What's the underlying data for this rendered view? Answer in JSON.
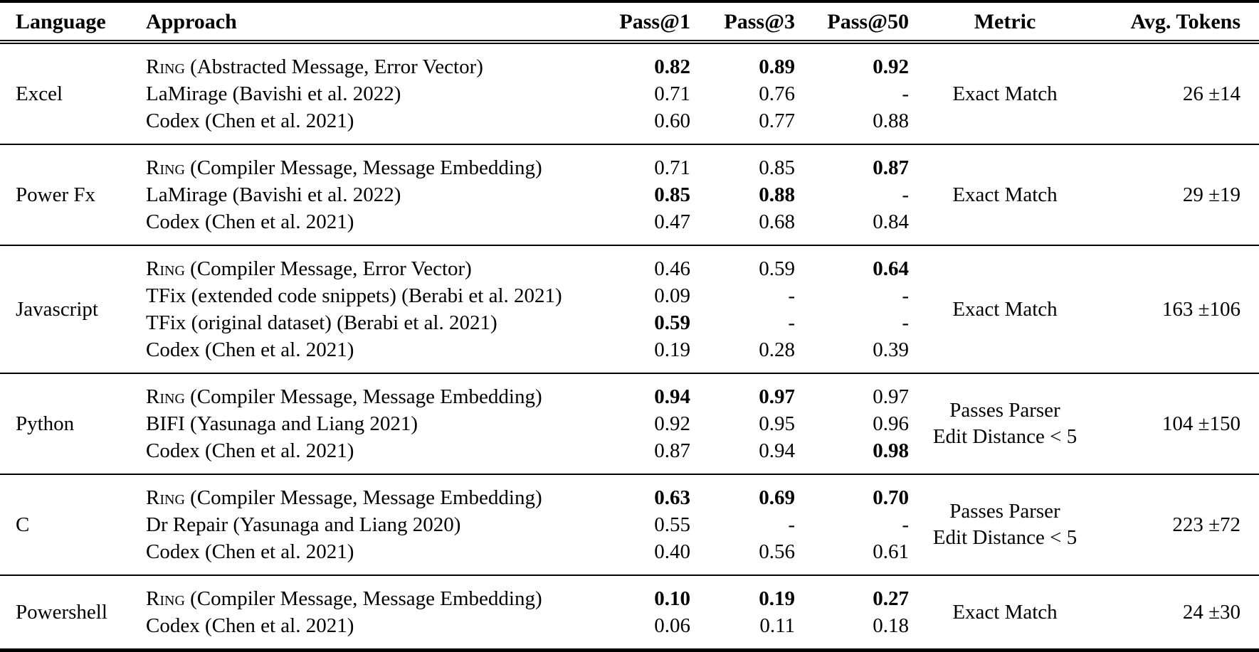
{
  "table": {
    "columns": [
      "Language",
      "Approach",
      "Pass@1",
      "Pass@3",
      "Pass@50",
      "Metric",
      "Avg. Tokens"
    ],
    "groups": [
      {
        "language": "Excel",
        "metric": "Exact Match",
        "avg_tokens": "26 ±14",
        "rows": [
          {
            "approach_sc": "Ring",
            "approach": " (Abstracted Message, Error Vector)",
            "pass1": {
              "v": "0.82",
              "b": true
            },
            "pass3": {
              "v": "0.89",
              "b": true
            },
            "pass50": {
              "v": "0.92",
              "b": true
            }
          },
          {
            "approach_sc": "",
            "approach": "LaMirage (Bavishi et al. 2022)",
            "pass1": {
              "v": "0.71",
              "b": false
            },
            "pass3": {
              "v": "0.76",
              "b": false
            },
            "pass50": {
              "v": "-",
              "b": false
            }
          },
          {
            "approach_sc": "",
            "approach": "Codex (Chen et al. 2021)",
            "pass1": {
              "v": "0.60",
              "b": false
            },
            "pass3": {
              "v": "0.77",
              "b": false
            },
            "pass50": {
              "v": "0.88",
              "b": false
            }
          }
        ]
      },
      {
        "language": "Power Fx",
        "metric": "Exact Match",
        "avg_tokens": "29 ±19",
        "rows": [
          {
            "approach_sc": "Ring",
            "approach": " (Compiler Message, Message Embedding)",
            "pass1": {
              "v": "0.71",
              "b": false
            },
            "pass3": {
              "v": "0.85",
              "b": false
            },
            "pass50": {
              "v": "0.87",
              "b": true
            }
          },
          {
            "approach_sc": "",
            "approach": "LaMirage (Bavishi et al. 2022)",
            "pass1": {
              "v": "0.85",
              "b": true
            },
            "pass3": {
              "v": "0.88",
              "b": true
            },
            "pass50": {
              "v": "-",
              "b": false
            }
          },
          {
            "approach_sc": "",
            "approach": "Codex (Chen et al. 2021)",
            "pass1": {
              "v": "0.47",
              "b": false
            },
            "pass3": {
              "v": "0.68",
              "b": false
            },
            "pass50": {
              "v": "0.84",
              "b": false
            }
          }
        ]
      },
      {
        "language": "Javascript",
        "metric": "Exact Match",
        "avg_tokens": "163 ±106",
        "rows": [
          {
            "approach_sc": "Ring",
            "approach": " (Compiler Message, Error Vector)",
            "pass1": {
              "v": "0.46",
              "b": false
            },
            "pass3": {
              "v": "0.59",
              "b": false
            },
            "pass50": {
              "v": "0.64",
              "b": true
            }
          },
          {
            "approach_sc": "",
            "approach": "TFix (extended code snippets) (Berabi et al. 2021)",
            "pass1": {
              "v": "0.09",
              "b": false
            },
            "pass3": {
              "v": "-",
              "b": false
            },
            "pass50": {
              "v": "-",
              "b": false
            }
          },
          {
            "approach_sc": "",
            "approach": "TFix (original dataset) (Berabi et al. 2021)",
            "pass1": {
              "v": "0.59",
              "b": true
            },
            "pass3": {
              "v": "-",
              "b": false
            },
            "pass50": {
              "v": "-",
              "b": false
            }
          },
          {
            "approach_sc": "",
            "approach": "Codex (Chen et al. 2021)",
            "pass1": {
              "v": "0.19",
              "b": false
            },
            "pass3": {
              "v": "0.28",
              "b": false
            },
            "pass50": {
              "v": "0.39",
              "b": false
            }
          }
        ]
      },
      {
        "language": "Python",
        "metric": "Passes Parser\nEdit Distance < 5",
        "avg_tokens": "104 ±150",
        "rows": [
          {
            "approach_sc": "Ring",
            "approach": " (Compiler Message, Message Embedding)",
            "pass1": {
              "v": "0.94",
              "b": true
            },
            "pass3": {
              "v": "0.97",
              "b": true
            },
            "pass50": {
              "v": "0.97",
              "b": false
            }
          },
          {
            "approach_sc": "",
            "approach": "BIFI (Yasunaga and Liang 2021)",
            "pass1": {
              "v": "0.92",
              "b": false
            },
            "pass3": {
              "v": "0.95",
              "b": false
            },
            "pass50": {
              "v": "0.96",
              "b": false
            }
          },
          {
            "approach_sc": "",
            "approach": "Codex (Chen et al. 2021)",
            "pass1": {
              "v": "0.87",
              "b": false
            },
            "pass3": {
              "v": "0.94",
              "b": false
            },
            "pass50": {
              "v": "0.98",
              "b": true
            }
          }
        ]
      },
      {
        "language": "C",
        "metric": "Passes Parser\nEdit Distance < 5",
        "avg_tokens": "223 ±72",
        "rows": [
          {
            "approach_sc": "Ring",
            "approach": " (Compiler Message, Message Embedding)",
            "pass1": {
              "v": "0.63",
              "b": true
            },
            "pass3": {
              "v": "0.69",
              "b": true
            },
            "pass50": {
              "v": "0.70",
              "b": true
            }
          },
          {
            "approach_sc": "",
            "approach": "Dr Repair (Yasunaga and Liang 2020)",
            "pass1": {
              "v": "0.55",
              "b": false
            },
            "pass3": {
              "v": "-",
              "b": false
            },
            "pass50": {
              "v": "-",
              "b": false
            }
          },
          {
            "approach_sc": "",
            "approach": "Codex (Chen et al. 2021)",
            "pass1": {
              "v": "0.40",
              "b": false
            },
            "pass3": {
              "v": "0.56",
              "b": false
            },
            "pass50": {
              "v": "0.61",
              "b": false
            }
          }
        ]
      },
      {
        "language": "Powershell",
        "metric": "Exact Match",
        "avg_tokens": "24 ±30",
        "rows": [
          {
            "approach_sc": "Ring",
            "approach": " (Compiler Message, Message Embedding)",
            "pass1": {
              "v": "0.10",
              "b": true
            },
            "pass3": {
              "v": "0.19",
              "b": true
            },
            "pass50": {
              "v": "0.27",
              "b": true
            }
          },
          {
            "approach_sc": "",
            "approach": "Codex (Chen et al. 2021)",
            "pass1": {
              "v": "0.06",
              "b": false
            },
            "pass3": {
              "v": "0.11",
              "b": false
            },
            "pass50": {
              "v": "0.18",
              "b": false
            }
          }
        ]
      }
    ]
  }
}
